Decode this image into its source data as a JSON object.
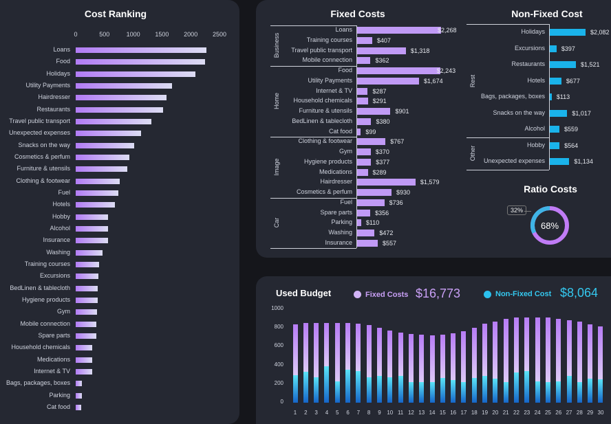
{
  "ranking": {
    "title": "Cost Ranking",
    "xticks": [
      0,
      500,
      1000,
      1500,
      2000,
      2500
    ],
    "items": [
      [
        "Loans",
        2268
      ],
      [
        "Food",
        2243
      ],
      [
        "Holidays",
        2082
      ],
      [
        "Utility Payments",
        1674
      ],
      [
        "Hairdresser",
        1579
      ],
      [
        "Restaurants",
        1521
      ],
      [
        "Travel public transport",
        1318
      ],
      [
        "Unexpected expenses",
        1134
      ],
      [
        "Snacks on the way",
        1017
      ],
      [
        "Cosmetics & perfum",
        930
      ],
      [
        "Furniture & utensils",
        901
      ],
      [
        "Clothing & footwear",
        767
      ],
      [
        "Fuel",
        736
      ],
      [
        "Hotels",
        677
      ],
      [
        "Hobby",
        564
      ],
      [
        "Alcohol",
        559
      ],
      [
        "Insurance",
        557
      ],
      [
        "Washing",
        472
      ],
      [
        "Training courses",
        407
      ],
      [
        "Excursions",
        397
      ],
      [
        "BedLinen & tablecloth",
        380
      ],
      [
        "Hygiene products",
        377
      ],
      [
        "Gym",
        370
      ],
      [
        "Mobile connection",
        362
      ],
      [
        "Spare parts",
        356
      ],
      [
        "Household chemicals",
        291
      ],
      [
        "Medications",
        289
      ],
      [
        "Internet & TV",
        287
      ],
      [
        "Bags, packages, boxes",
        113
      ],
      [
        "Parking",
        110
      ],
      [
        "Cat food",
        99
      ]
    ]
  },
  "fixed": {
    "title": "Fixed Costs",
    "groups": [
      {
        "name": "Business",
        "items": [
          [
            "Loans",
            "$2,268",
            2268
          ],
          [
            "Training courses",
            "$407",
            407
          ],
          [
            "Travel public transport",
            "$1,318",
            1318
          ],
          [
            "Mobile connection",
            "$362",
            362
          ]
        ]
      },
      {
        "name": "Home",
        "items": [
          [
            "Food",
            "$2,243",
            2243
          ],
          [
            "Utility Payments",
            "$1,674",
            1674
          ],
          [
            "Internet & TV",
            "$287",
            287
          ],
          [
            "Household chemicals",
            "$291",
            291
          ],
          [
            "Furniture & utensils",
            "$901",
            901
          ],
          [
            "BedLinen & tablecloth",
            "$380",
            380
          ],
          [
            "Cat food",
            "$99",
            99
          ]
        ]
      },
      {
        "name": "Image",
        "items": [
          [
            "Clothing & footwear",
            "$767",
            767
          ],
          [
            "Gym",
            "$370",
            370
          ],
          [
            "Hygiene products",
            "$377",
            377
          ],
          [
            "Medications",
            "$289",
            289
          ],
          [
            "Hairdresser",
            "$1,579",
            1579
          ],
          [
            "Cosmetics & perfum",
            "$930",
            930
          ]
        ]
      },
      {
        "name": "Car",
        "items": [
          [
            "Fuel",
            "$736",
            736
          ],
          [
            "Spare parts",
            "$356",
            356
          ],
          [
            "Parking",
            "$110",
            110
          ],
          [
            "Washing",
            "$472",
            472
          ],
          [
            "Insurance",
            "$557",
            557
          ]
        ]
      }
    ]
  },
  "nonfixed": {
    "title": "Non-Fixed Cost",
    "groups": [
      {
        "name": "Rest",
        "items": [
          [
            "Holidays",
            "$2,082",
            2082
          ],
          [
            "Excursions",
            "$397",
            397
          ],
          [
            "Restaurants",
            "$1,521",
            1521
          ],
          [
            "Hotels",
            "$677",
            677
          ],
          [
            "Bags, packages, boxes",
            "$113",
            113
          ],
          [
            "Snacks on the way",
            "$1,017",
            1017
          ],
          [
            "Alcohol",
            "$559",
            559
          ]
        ]
      },
      {
        "name": "Other",
        "items": [
          [
            "Hobby",
            "$564",
            564
          ],
          [
            "Unexpected expenses",
            "$1,134",
            1134
          ]
        ]
      }
    ]
  },
  "ratio": {
    "title": "Ratio Costs",
    "fixed_pct": "68%",
    "nonfixed_pct": "32%",
    "fixed_value": 68,
    "colors": {
      "fixed": "#c07cf6",
      "nonfixed": "#3fb4e6"
    }
  },
  "budget": {
    "title": "Used Budget",
    "fixed_label": "Fixed Costs",
    "fixed_total": "$16,773",
    "nonfixed_label": "Non-Fixed Cost",
    "nonfixed_total": "$8,064",
    "colors": {
      "fixed": "#c9a0f6",
      "nonfixed": "#34c8ef"
    }
  },
  "chart_data": {
    "type": "bar",
    "stacked": true,
    "ylim": [
      0,
      1000
    ],
    "yticks": [
      0,
      200,
      400,
      600,
      800,
      1000
    ],
    "categories": [
      1,
      2,
      3,
      4,
      5,
      6,
      7,
      8,
      9,
      10,
      11,
      12,
      13,
      14,
      15,
      16,
      17,
      18,
      19,
      20,
      21,
      22,
      23,
      24,
      25,
      26,
      27,
      28,
      29,
      30
    ],
    "series": [
      {
        "name": "Non-Fixed Cost",
        "values": [
          295,
          330,
          275,
          390,
          230,
          355,
          340,
          275,
          290,
          275,
          290,
          220,
          220,
          220,
          265,
          240,
          220,
          265,
          290,
          255,
          220,
          325,
          340,
          230,
          220,
          230,
          290,
          220,
          255,
          250
        ]
      },
      {
        "name": "Fixed Costs",
        "values": [
          540,
          520,
          580,
          465,
          625,
          500,
          505,
          555,
          510,
          495,
          460,
          515,
          505,
          500,
          460,
          500,
          545,
          535,
          555,
          615,
          680,
          585,
          575,
          685,
          690,
          670,
          590,
          645,
          580,
          565
        ]
      }
    ]
  }
}
